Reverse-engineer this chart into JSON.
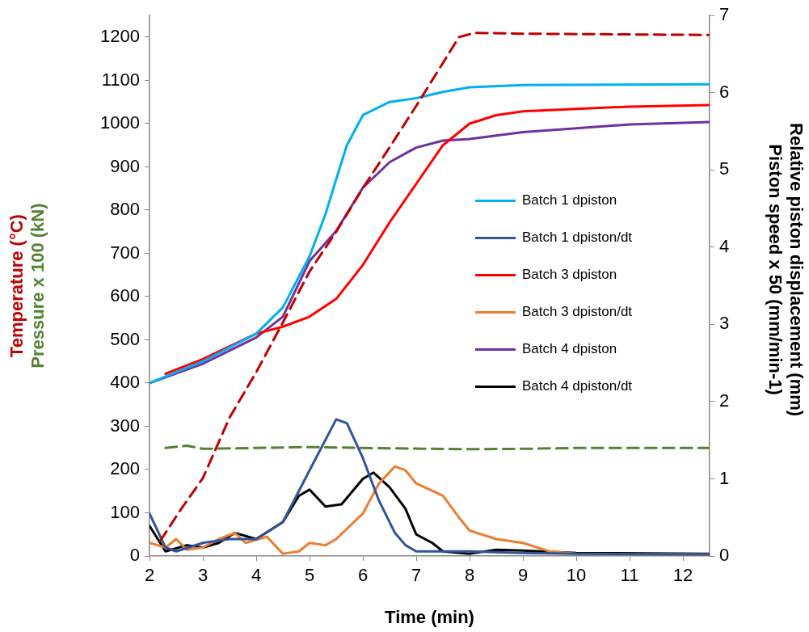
{
  "chart_data": {
    "type": "line",
    "xlabel": "Time (min)",
    "ylabel": [
      "Temperature (°C)",
      "Pressure x 100 (kN)"
    ],
    "y2label": [
      "Relative piston displacement (mm)",
      "Piston speed x 50 (mm/min-1)"
    ],
    "xlim": [
      2,
      12.5
    ],
    "xticks": [
      2,
      3,
      4,
      5,
      6,
      7,
      8,
      9,
      10,
      11,
      12
    ],
    "ylim": [
      0,
      1250
    ],
    "yticks": [
      0,
      100,
      200,
      300,
      400,
      500,
      600,
      700,
      800,
      900,
      1000,
      1100,
      1200
    ],
    "y2lim": [
      0,
      7
    ],
    "y2ticks": [
      0,
      1,
      2,
      3,
      4,
      5,
      6,
      7
    ],
    "grid": false,
    "legend": "right",
    "marker": "none",
    "series": [
      {
        "color": "#c00000",
        "line_style": "dashed",
        "x": [
          2.2,
          2.6,
          3,
          3.5,
          4,
          4.5,
          5,
          5.5,
          6,
          6.5,
          7,
          7.5,
          7.8,
          8.1,
          9,
          12.5
        ],
        "values": [
          35,
          110,
          180,
          320,
          425,
          540,
          658,
          750,
          851,
          945,
          1041,
          1140,
          1200,
          1210,
          1208,
          1205
        ]
      },
      {
        "color": "#548235",
        "line_style": "dashed",
        "x": [
          2.3,
          2.7,
          3,
          4,
          5,
          6,
          8,
          9,
          10,
          12.5
        ],
        "values": [
          250,
          255,
          248,
          250,
          252,
          250,
          247,
          248,
          250,
          250
        ]
      },
      {
        "name": "Batch 1 dpiston",
        "color": "#00b0f0",
        "axis": "y2",
        "x": [
          2,
          3,
          4,
          4.5,
          5,
          5.3,
          5.5,
          5.7,
          6,
          6.5,
          7,
          7.5,
          8,
          9,
          12.5
        ],
        "values": [
          2.24,
          2.52,
          2.88,
          3.22,
          3.88,
          4.43,
          4.88,
          5.32,
          5.71,
          5.88,
          5.93,
          6.01,
          6.07,
          6.1,
          6.11
        ]
      },
      {
        "name": "Batch 1 dpiston/dt",
        "color": "#2f5597",
        "axis": "y2",
        "x": [
          2,
          2.3,
          2.5,
          3,
          3.5,
          4,
          4.5,
          5,
          5.5,
          5.7,
          6,
          6.3,
          6.6,
          6.8,
          7,
          8,
          9,
          10,
          12.5
        ],
        "values": [
          0.55,
          0.11,
          0.06,
          0.17,
          0.22,
          0.22,
          0.44,
          1.11,
          1.77,
          1.72,
          1.27,
          0.72,
          0.3,
          0.14,
          0.06,
          0.06,
          0.04,
          0.03,
          0.02
        ]
      },
      {
        "name": "Batch 3 dpiston",
        "color": "#ff0000",
        "axis": "y2",
        "x": [
          2.3,
          3,
          4,
          4.5,
          5,
          5.5,
          6,
          6.5,
          7,
          7.5,
          8,
          8.5,
          9,
          10,
          11,
          12.5
        ],
        "values": [
          2.36,
          2.55,
          2.88,
          2.97,
          3.1,
          3.33,
          3.77,
          4.32,
          4.82,
          5.32,
          5.6,
          5.71,
          5.76,
          5.79,
          5.82,
          5.84
        ]
      },
      {
        "name": "Batch 3 dpiston/dt",
        "color": "#ed7d31",
        "axis": "y2",
        "x": [
          2,
          2.3,
          2.5,
          2.7,
          3,
          3.3,
          3.6,
          3.8,
          4.2,
          4.5,
          4.8,
          5,
          5.3,
          5.5,
          6,
          6.3,
          6.6,
          6.8,
          7,
          7.5,
          7.8,
          8,
          8.5,
          9,
          9.5,
          10,
          12.5
        ],
        "values": [
          0.17,
          0.11,
          0.22,
          0.08,
          0.11,
          0.22,
          0.3,
          0.17,
          0.25,
          0.03,
          0.06,
          0.17,
          0.14,
          0.22,
          0.55,
          0.94,
          1.16,
          1.11,
          0.94,
          0.78,
          0.5,
          0.33,
          0.22,
          0.17,
          0.06,
          0.03,
          0.02
        ]
      },
      {
        "name": "Batch 4 dpiston",
        "color": "#7030a0",
        "axis": "y2",
        "x": [
          2,
          3,
          4,
          4.5,
          5,
          5.5,
          6,
          6.5,
          7,
          7.5,
          8,
          9,
          10,
          11,
          12.5
        ],
        "values": [
          2.24,
          2.49,
          2.83,
          3.1,
          3.82,
          4.21,
          4.77,
          5.1,
          5.29,
          5.38,
          5.4,
          5.49,
          5.54,
          5.59,
          5.62
        ]
      },
      {
        "name": "Batch 4 dpiston/dt",
        "color": "#000000",
        "axis": "y2",
        "x": [
          2,
          2.3,
          2.7,
          3,
          3.3,
          3.6,
          4,
          4.5,
          4.8,
          5,
          5.3,
          5.6,
          6,
          6.2,
          6.5,
          6.8,
          7,
          7.3,
          7.5,
          8,
          8.5,
          9,
          10,
          12.5
        ],
        "values": [
          0.39,
          0.06,
          0.14,
          0.11,
          0.17,
          0.3,
          0.22,
          0.44,
          0.78,
          0.86,
          0.64,
          0.67,
          1,
          1.08,
          0.89,
          0.61,
          0.28,
          0.17,
          0.06,
          0.03,
          0.08,
          0.07,
          0.04,
          0.03
        ]
      }
    ]
  }
}
